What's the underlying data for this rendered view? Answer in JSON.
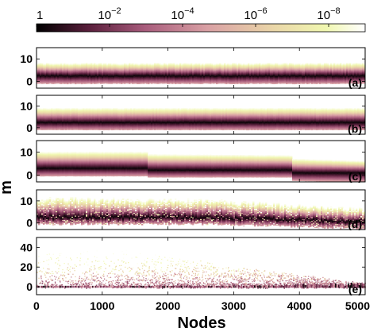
{
  "chart_data": {
    "type": "heatmap",
    "xlabel": "Nodes",
    "ylabel": "m",
    "x_ticks": [
      "0",
      "1000",
      "2000",
      "3000",
      "4000",
      "5000"
    ],
    "xlim": [
      0,
      5000
    ],
    "colorbar": {
      "scale": "log",
      "range": [
        1,
        1e-09
      ],
      "ticks": [
        {
          "base": "1",
          "exp": ""
        },
        {
          "base": "10",
          "exp": "−2"
        },
        {
          "base": "10",
          "exp": "−4"
        },
        {
          "base": "10",
          "exp": "−6"
        },
        {
          "base": "10",
          "exp": "−8"
        }
      ],
      "colors": [
        "#000000",
        "#5a1f3c",
        "#a85c7c",
        "#d9a0a4",
        "#ead6a8",
        "#f0f7b0",
        "#ffffff"
      ]
    },
    "panels": [
      {
        "label": "(a)",
        "ylim": [
          -3,
          15
        ],
        "y_ticks": [
          "0",
          "10"
        ],
        "center": [
          [
            0,
            2.5
          ],
          [
            5000,
            2.5
          ]
        ],
        "upper": [
          [
            0,
            8
          ],
          [
            5000,
            8
          ]
        ],
        "lower": [
          [
            0,
            -1
          ],
          [
            5000,
            -1
          ]
        ],
        "noise": 0.08
      },
      {
        "label": "(b)",
        "ylim": [
          -3,
          15
        ],
        "y_ticks": [
          "0",
          "10"
        ],
        "center": [
          [
            0,
            2.5
          ],
          [
            5000,
            2.5
          ]
        ],
        "upper": [
          [
            0,
            9
          ],
          [
            5000,
            9
          ]
        ],
        "lower": [
          [
            0,
            -1
          ],
          [
            5000,
            -1
          ]
        ],
        "noise": 0.04
      },
      {
        "label": "(c)",
        "ylim": [
          -3,
          15
        ],
        "y_ticks": [
          "0",
          "10"
        ],
        "center": [
          [
            0,
            3
          ],
          [
            1700,
            3
          ],
          [
            1700,
            2.2
          ],
          [
            3900,
            2.2
          ],
          [
            3900,
            1
          ],
          [
            5000,
            1
          ]
        ],
        "upper": [
          [
            0,
            10
          ],
          [
            1700,
            10
          ],
          [
            1700,
            9
          ],
          [
            3900,
            8.5
          ],
          [
            3900,
            7
          ],
          [
            5000,
            6
          ]
        ],
        "lower": [
          [
            0,
            -0.5
          ],
          [
            1700,
            -0.5
          ],
          [
            1700,
            -1
          ],
          [
            3900,
            -1
          ],
          [
            3900,
            -2.5
          ],
          [
            5000,
            -3
          ]
        ],
        "noise": 0.02
      },
      {
        "label": "(d)",
        "ylim": [
          -3,
          15
        ],
        "y_ticks": [
          "0",
          "10"
        ],
        "center": [
          [
            0,
            2.5
          ],
          [
            2600,
            2.5
          ],
          [
            5000,
            0.5
          ]
        ],
        "upper": [
          [
            0,
            11
          ],
          [
            2600,
            10
          ],
          [
            5000,
            6
          ]
        ],
        "lower": [
          [
            0,
            -0.5
          ],
          [
            2600,
            -0.5
          ],
          [
            5000,
            -2.5
          ]
        ],
        "noise": 0.25
      },
      {
        "label": "(e)",
        "ylim": [
          -8,
          50
        ],
        "y_ticks": [
          "0",
          "20",
          "40"
        ],
        "sparse": true
      }
    ]
  }
}
